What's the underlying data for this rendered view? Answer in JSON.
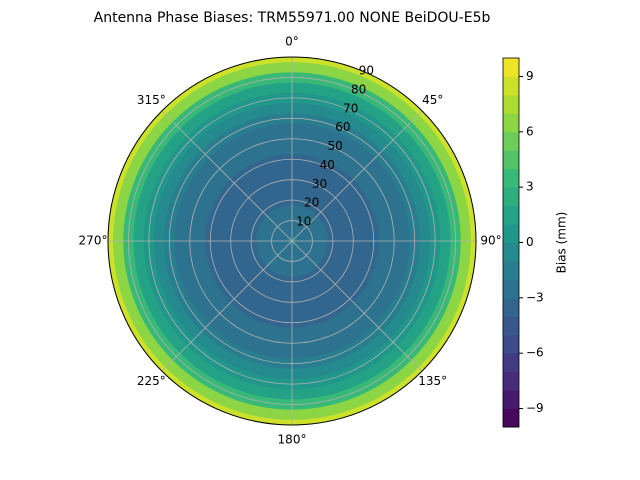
{
  "chart_data": {
    "type": "polar-contour",
    "title": "Antenna Phase Biases: TRM55971.00     NONE BeiDOU-E5b",
    "theta_zero": "N",
    "theta_direction": "clockwise",
    "thetaticks": [
      {
        "value": 0,
        "label": "0°"
      },
      {
        "value": 45,
        "label": "45°"
      },
      {
        "value": 90,
        "label": "90°"
      },
      {
        "value": 135,
        "label": "135°"
      },
      {
        "value": 180,
        "label": "180°"
      },
      {
        "value": 225,
        "label": "225°"
      },
      {
        "value": 270,
        "label": "270°"
      },
      {
        "value": 315,
        "label": "315°"
      }
    ],
    "rlim": [
      0,
      90
    ],
    "rticks": [
      10,
      20,
      30,
      40,
      50,
      60,
      70,
      80,
      90
    ],
    "grid": true,
    "r": [
      0,
      5,
      10,
      15,
      20,
      25,
      30,
      35,
      40,
      45,
      50,
      55,
      60,
      65,
      70,
      75,
      80,
      85,
      90
    ],
    "values": [
      -1.8,
      -2.1,
      -2.5,
      -2.8,
      -3.1,
      -3.2,
      -3.3,
      -3.3,
      -3.2,
      -3.0,
      -2.8,
      -2.4,
      -1.8,
      -1.0,
      0,
      1.5,
      3.5,
      6,
      8.5
    ],
    "colormap": "viridis",
    "level_step": 1,
    "colorbar": {
      "label": "Bias (mm)",
      "clim": [
        -10,
        10
      ],
      "ticks": [
        {
          "value": -9,
          "label": "−9"
        },
        {
          "value": -6,
          "label": "−6"
        },
        {
          "value": -3,
          "label": "−3"
        },
        0,
        3,
        6,
        9
      ]
    }
  }
}
